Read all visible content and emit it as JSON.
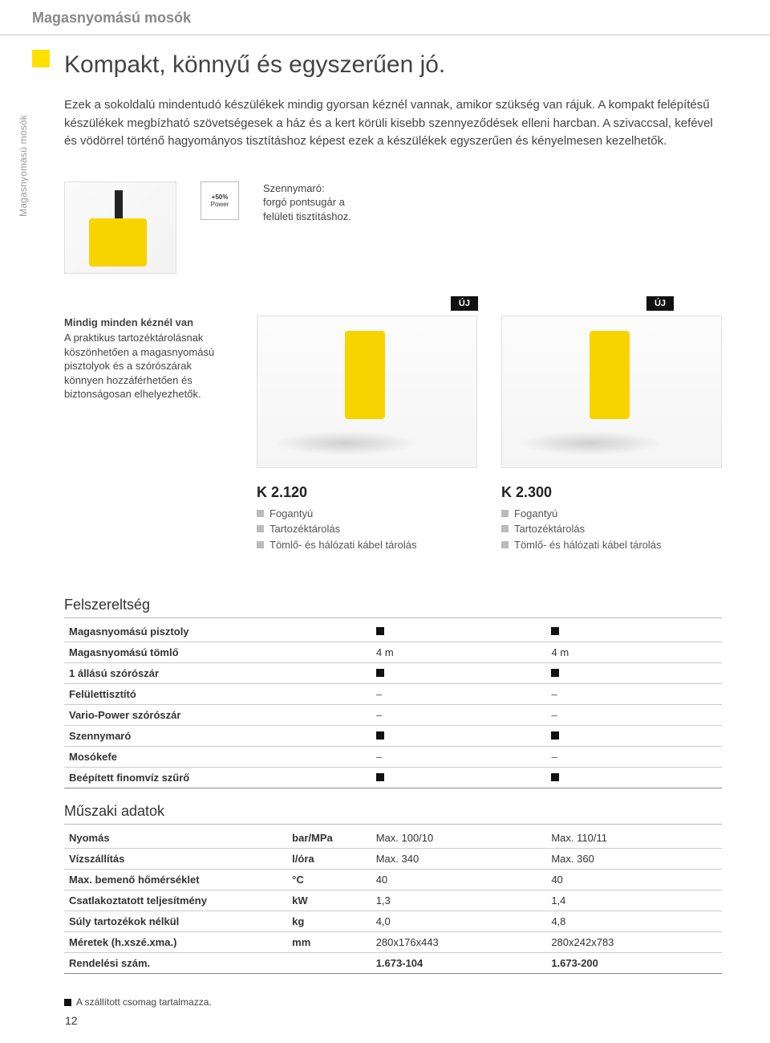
{
  "header": {
    "category": "Magasnyomású mosók"
  },
  "sidebar_label": "Magasnyomású mosók",
  "title": "Kompakt, könnyű és egyszerűen jó.",
  "intro": "Ezek a sokoldalú mindentudó készülékek mindig gyorsan kéznél vannak, amikor szükség van rájuk. A kompakt felépítésű készülékek megbízható szövetségesek a ház és a kert körüli kisebb szennyeződések elleni harcban. A szivaccsal, kefével és vödörrel történő hagyományos tisztításhoz képest ezek a készülékek egyszerűen és kényelmesen kezelhetők.",
  "power_icon": {
    "top": "+50%",
    "sub": "Power"
  },
  "feature_dirt": "Szennymaró:\nforgó pontsugár a\nfelületi tisztításhoz.",
  "badge_new": "ÚJ",
  "side_note": {
    "bold": "Mindig minden kéznél van",
    "text": "A praktikus tartozéktárolásnak köszönhetően a magasnyomású pisztolyok és a szórószárak könnyen hozzáférhetően és biztonságosan elhelyezhetők."
  },
  "products": [
    {
      "model": "K 2.120",
      "bullets": [
        "Fogantyú",
        "Tartozéktárolás",
        "Tömlő- és hálózati kábel tárolás"
      ]
    },
    {
      "model": "K 2.300",
      "bullets": [
        "Fogantyú",
        "Tartozéktárolás",
        "Tömlő- és hálózati kábel tárolás"
      ]
    }
  ],
  "equip": {
    "title": "Felszereltség",
    "rows": [
      {
        "label": "Magasnyomású pisztoly",
        "v1": "■",
        "v2": "■"
      },
      {
        "label": "Magasnyomású tömlő",
        "v1": "4 m",
        "v2": "4 m"
      },
      {
        "label": "1 állású szórószár",
        "v1": "■",
        "v2": "■"
      },
      {
        "label": "Felülettisztító",
        "v1": "–",
        "v2": "–"
      },
      {
        "label": "Vario-Power szórószár",
        "v1": "–",
        "v2": "–"
      },
      {
        "label": "Szennymaró",
        "v1": "■",
        "v2": "■"
      },
      {
        "label": "Mosókefe",
        "v1": "–",
        "v2": "–"
      },
      {
        "label": "Beépített finomvíz szűrő",
        "v1": "■",
        "v2": "■"
      }
    ]
  },
  "tech": {
    "title": "Műszaki adatok",
    "rows": [
      {
        "label": "Nyomás",
        "unit": "bar/MPa",
        "v1": "Max. 100/10",
        "v2": "Max. 110/11"
      },
      {
        "label": "Vízszállítás",
        "unit": "l/óra",
        "v1": "Max. 340",
        "v2": "Max. 360"
      },
      {
        "label": "Max. bemenő hőmérséklet",
        "unit": "°C",
        "v1": "40",
        "v2": "40"
      },
      {
        "label": "Csatlakoztatott teljesítmény",
        "unit": "kW",
        "v1": "1,3",
        "v2": "1,4"
      },
      {
        "label": "Súly tartozékok nélkül",
        "unit": "kg",
        "v1": "4,0",
        "v2": "4,8"
      },
      {
        "label": "Méretek (h.xszé.xma.)",
        "unit": "mm",
        "v1": "280x176x443",
        "v2": "280x242x783"
      },
      {
        "label": "Rendelési szám.",
        "unit": "",
        "v1": "1.673-104",
        "v2": "1.673-200",
        "bold": true
      }
    ]
  },
  "footer_note": "A szállított csomag tartalmazza.",
  "page_number": "12",
  "colors": {
    "brand_yellow": "#ffe000"
  }
}
